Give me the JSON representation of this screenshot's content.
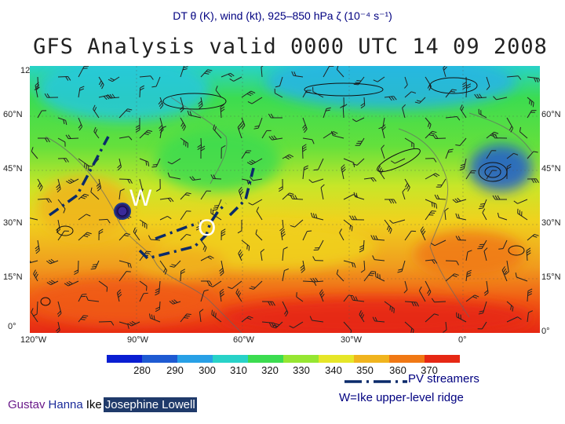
{
  "header": {
    "caption": "DT θ (K), wind (kt), 925–850 hPa ζ (10⁻⁴ s⁻¹)",
    "map_title": "GFS Analysis valid 0000 UTC 14 09 2008"
  },
  "map": {
    "lon_labels": [
      "120°W",
      "90°W",
      "60°W",
      "30°W",
      "0°"
    ],
    "lat_labels": [
      "60°N",
      "45°N",
      "30°N",
      "15°N",
      "0°"
    ],
    "annotations": {
      "ridge_marker": "W",
      "trough_marker": "O"
    }
  },
  "colorbar": {
    "ticks": [
      "280",
      "290",
      "300",
      "310",
      "320",
      "330",
      "340",
      "350",
      "360",
      "370"
    ],
    "colors": [
      "#0a1ed2",
      "#1e5ad2",
      "#28a0e6",
      "#28d2c8",
      "#3cdc50",
      "#96e632",
      "#e6e628",
      "#f0b41e",
      "#f07814",
      "#e62814"
    ]
  },
  "legend": {
    "pv_streamers": "PV streamers",
    "ridge_note": "W=Ike upper-level ridge"
  },
  "storms": [
    {
      "name": "Gustav",
      "color": "#6a1a8a",
      "bg": "transparent"
    },
    {
      "name": "Hanna",
      "color": "#1a2a9a",
      "bg": "transparent"
    },
    {
      "name": "Ike",
      "color": "#000000",
      "bg": "transparent"
    },
    {
      "name": "Josephine",
      "color": "#ffffff",
      "bg": "#1f3a6a"
    },
    {
      "name": "Lowell",
      "color": "#ffffff",
      "bg": "#1f3a6a"
    }
  ]
}
